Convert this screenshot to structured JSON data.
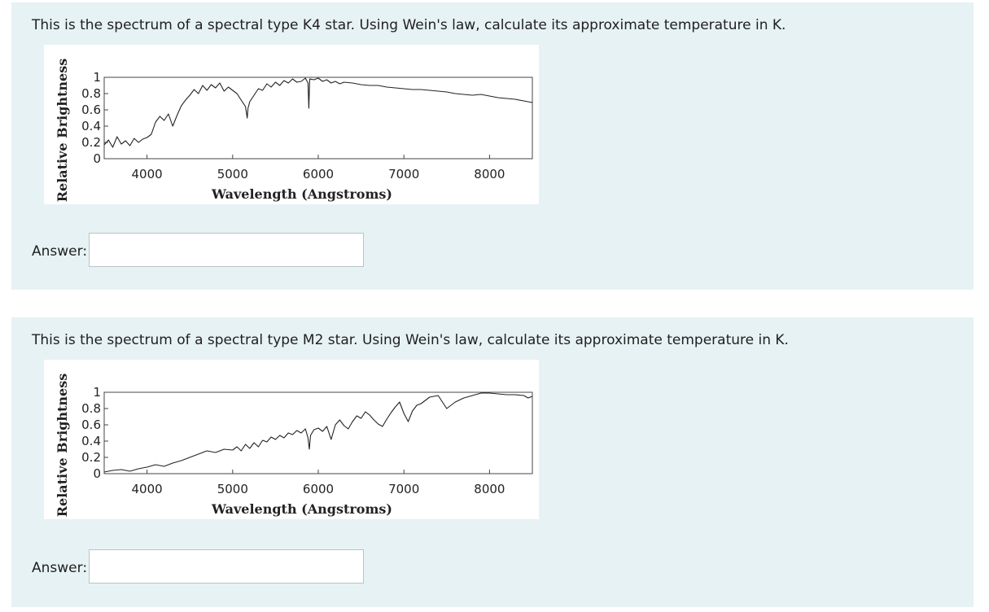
{
  "questions": [
    {
      "prompt": "This is the spectrum of a spectral type K4 star. Using Wein's law, calculate its approximate temperature in K.",
      "answer_label": "Answer:",
      "answer_value": ""
    },
    {
      "prompt": "This is the spectrum of a spectral type M2 star. Using Wein's law, calculate its approximate temperature in K.",
      "answer_label": "Answer:",
      "answer_value": ""
    }
  ],
  "chart_data": [
    {
      "type": "line",
      "title": "",
      "xlabel": "Wavelength (Angstroms)",
      "ylabel": "Relative Brightness",
      "xlim": [
        3500,
        8500
      ],
      "ylim": [
        0,
        1
      ],
      "x_ticks": [
        4000,
        5000,
        6000,
        7000,
        8000
      ],
      "y_ticks": [
        0,
        0.2,
        0.4,
        0.6,
        0.8,
        1
      ],
      "y_tick_labels": [
        "0",
        "0.2",
        "0.4",
        "0.6",
        "0.8",
        "1"
      ],
      "grid": false,
      "series": [
        {
          "x": [
            3500,
            3550,
            3600,
            3650,
            3700,
            3750,
            3800,
            3850,
            3900,
            3950,
            4000,
            4050,
            4100,
            4150,
            4200,
            4250,
            4300,
            4350,
            4400,
            4450,
            4500,
            4550,
            4600,
            4650,
            4700,
            4750,
            4800,
            4850,
            4900,
            4950,
            5000,
            5050,
            5100,
            5150,
            5170,
            5180,
            5200,
            5250,
            5300,
            5350,
            5400,
            5450,
            5500,
            5550,
            5600,
            5650,
            5700,
            5750,
            5800,
            5850,
            5880,
            5890,
            5900,
            5950,
            6000,
            6050,
            6100,
            6150,
            6200,
            6250,
            6300,
            6400,
            6500,
            6600,
            6700,
            6800,
            6900,
            7000,
            7100,
            7200,
            7300,
            7400,
            7500,
            7600,
            7700,
            7800,
            7900,
            8000,
            8100,
            8200,
            8300,
            8400,
            8450,
            8500
          ],
          "y": [
            0.17,
            0.23,
            0.14,
            0.27,
            0.18,
            0.22,
            0.16,
            0.25,
            0.2,
            0.24,
            0.26,
            0.3,
            0.45,
            0.52,
            0.47,
            0.55,
            0.4,
            0.53,
            0.65,
            0.72,
            0.78,
            0.85,
            0.8,
            0.9,
            0.84,
            0.91,
            0.87,
            0.93,
            0.83,
            0.88,
            0.84,
            0.8,
            0.72,
            0.64,
            0.5,
            0.62,
            0.7,
            0.78,
            0.86,
            0.84,
            0.92,
            0.88,
            0.94,
            0.9,
            0.96,
            0.93,
            0.98,
            0.94,
            0.95,
            0.99,
            0.93,
            0.62,
            0.98,
            0.97,
            0.99,
            0.95,
            0.97,
            0.93,
            0.95,
            0.92,
            0.94,
            0.93,
            0.91,
            0.9,
            0.9,
            0.88,
            0.87,
            0.86,
            0.85,
            0.85,
            0.84,
            0.83,
            0.82,
            0.8,
            0.79,
            0.78,
            0.79,
            0.77,
            0.75,
            0.74,
            0.73,
            0.71,
            0.7,
            0.69
          ]
        }
      ]
    },
    {
      "type": "line",
      "title": "",
      "xlabel": "Wavelength (Angstroms)",
      "ylabel": "Relative Brightness",
      "xlim": [
        3500,
        8500
      ],
      "ylim": [
        0,
        1
      ],
      "x_ticks": [
        4000,
        5000,
        6000,
        7000,
        8000
      ],
      "y_ticks": [
        0,
        0.2,
        0.4,
        0.6,
        0.8,
        1
      ],
      "y_tick_labels": [
        "0",
        "0.2",
        "0.4",
        "0.6",
        "0.8",
        "1"
      ],
      "grid": false,
      "series": [
        {
          "x": [
            3500,
            3600,
            3700,
            3800,
            3900,
            4000,
            4100,
            4200,
            4300,
            4400,
            4500,
            4600,
            4700,
            4800,
            4900,
            5000,
            5050,
            5100,
            5150,
            5200,
            5250,
            5300,
            5350,
            5400,
            5450,
            5500,
            5550,
            5600,
            5650,
            5700,
            5750,
            5800,
            5850,
            5880,
            5895,
            5910,
            5950,
            6000,
            6050,
            6100,
            6150,
            6200,
            6250,
            6300,
            6350,
            6400,
            6450,
            6500,
            6550,
            6600,
            6650,
            6700,
            6750,
            6800,
            6850,
            6900,
            6950,
            7000,
            7050,
            7100,
            7150,
            7200,
            7300,
            7400,
            7500,
            7600,
            7700,
            7800,
            7900,
            8000,
            8100,
            8200,
            8300,
            8400,
            8450,
            8500
          ],
          "y": [
            0.02,
            0.04,
            0.05,
            0.03,
            0.06,
            0.08,
            0.11,
            0.09,
            0.13,
            0.16,
            0.2,
            0.24,
            0.28,
            0.26,
            0.3,
            0.29,
            0.33,
            0.28,
            0.36,
            0.31,
            0.38,
            0.33,
            0.41,
            0.39,
            0.45,
            0.42,
            0.47,
            0.44,
            0.5,
            0.48,
            0.53,
            0.5,
            0.55,
            0.44,
            0.3,
            0.47,
            0.54,
            0.56,
            0.52,
            0.58,
            0.42,
            0.6,
            0.66,
            0.59,
            0.55,
            0.64,
            0.71,
            0.68,
            0.76,
            0.72,
            0.66,
            0.61,
            0.58,
            0.67,
            0.75,
            0.82,
            0.88,
            0.74,
            0.64,
            0.77,
            0.84,
            0.86,
            0.94,
            0.96,
            0.8,
            0.88,
            0.93,
            0.96,
            0.99,
            0.99,
            0.98,
            0.97,
            0.97,
            0.96,
            0.93,
            0.95
          ]
        }
      ]
    }
  ]
}
